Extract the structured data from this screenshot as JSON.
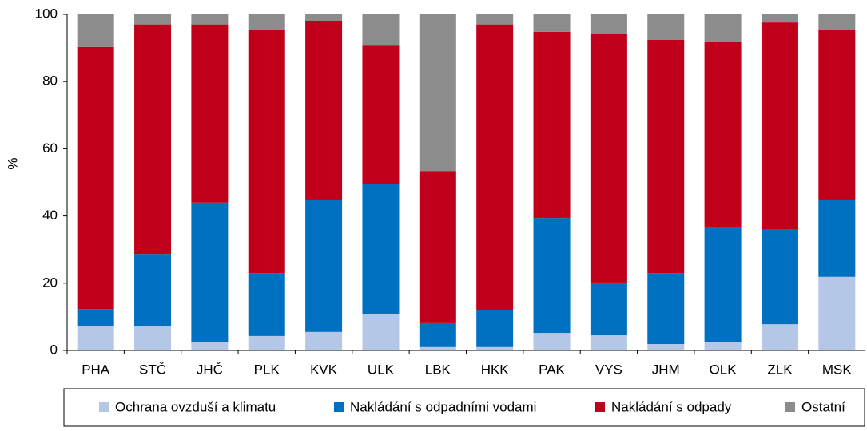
{
  "chart_data": {
    "type": "stacked_bar",
    "y_label": "%",
    "categories": [
      "PHA",
      "STČ",
      "JHČ",
      "PLK",
      "KVK",
      "ULK",
      "LBK",
      "HKK",
      "PAK",
      "VYS",
      "JHM",
      "OLK",
      "ZLK",
      "MSK"
    ],
    "series": [
      {
        "name": "Ochrana ovzduší a klimatu",
        "color": "#b4c7e7",
        "values": [
          7.3,
          7.3,
          2.6,
          4.3,
          5.5,
          10.7,
          1,
          1,
          5.2,
          4.5,
          1.9,
          2.6,
          7.8,
          21.9
        ]
      },
      {
        "name": "Nakládání s odpadními vodami",
        "color": "#0070c0",
        "values": [
          5,
          21.4,
          41.4,
          18.7,
          39.4,
          38.7,
          7.1,
          10.9,
          34.2,
          15.7,
          21.1,
          34,
          28.3,
          23
        ]
      },
      {
        "name": "Nakládání s odpady",
        "color": "#c0001a",
        "values": [
          78,
          68.3,
          53,
          72.3,
          53.2,
          41.3,
          45.3,
          85.1,
          55.4,
          74.1,
          69.4,
          55.1,
          61.5,
          50.4
        ]
      },
      {
        "name": "Ostatní",
        "color": "#8c8c8c",
        "values": [
          9.7,
          3,
          3,
          4.7,
          1.9,
          9.3,
          46.6,
          3,
          5.2,
          5.7,
          7.6,
          8.3,
          2.4,
          4.7
        ]
      }
    ],
    "ylim": [
      0,
      100
    ],
    "yticks": [
      0,
      20,
      40,
      60,
      80,
      100
    ],
    "legend": "bottom"
  }
}
